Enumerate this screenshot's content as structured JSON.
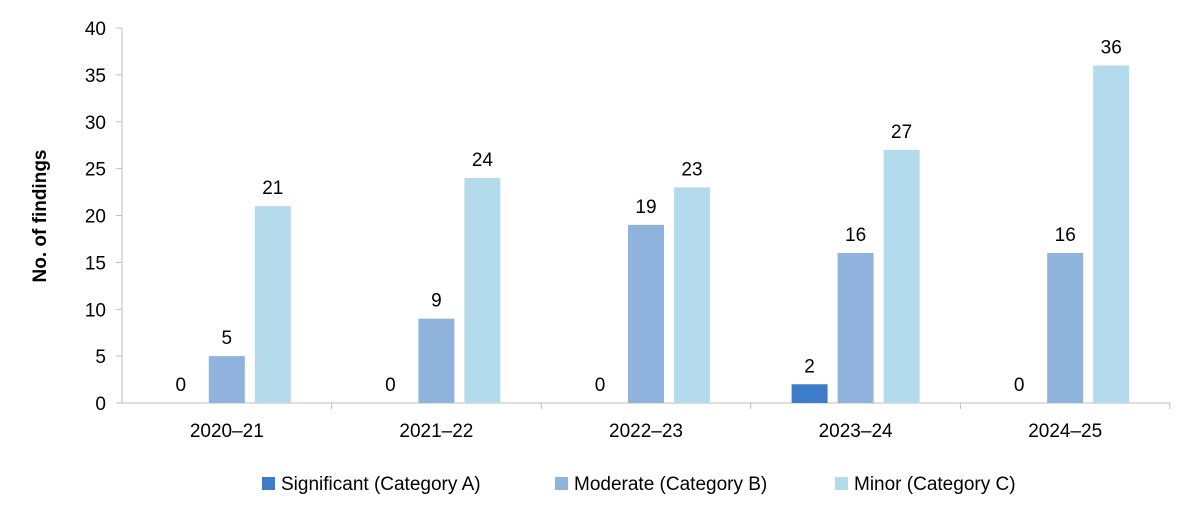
{
  "chart_data": {
    "type": "bar",
    "title": "",
    "xlabel": "",
    "ylabel": "No. of findings",
    "ylim": [
      0,
      40
    ],
    "yticks": [
      0,
      5,
      10,
      15,
      20,
      25,
      30,
      35,
      40
    ],
    "categories": [
      "2020–21",
      "2021–22",
      "2022–23",
      "2023–24",
      "2024–25"
    ],
    "series": [
      {
        "name": "Significant (Category A)",
        "color": "#3d7cc9",
        "values": [
          0,
          0,
          0,
          2,
          0
        ]
      },
      {
        "name": "Moderate (Category B)",
        "color": "#8fb3dc",
        "values": [
          5,
          9,
          19,
          16,
          16
        ]
      },
      {
        "name": "Minor (Category C)",
        "color": "#b4dbec",
        "values": [
          21,
          24,
          23,
          27,
          36
        ]
      }
    ],
    "data_labels": true,
    "grid": false,
    "legend_position": "bottom"
  }
}
